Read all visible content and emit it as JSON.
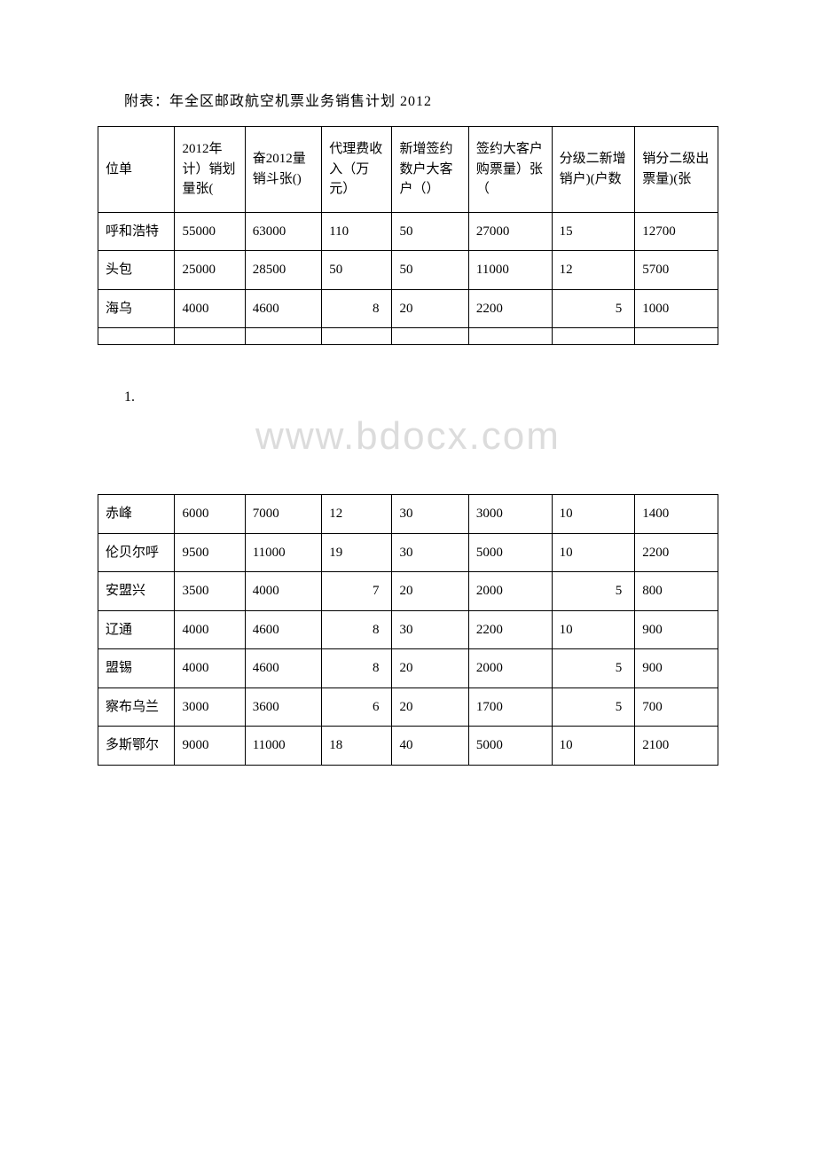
{
  "title": "附表：年全区邮政航空机票业务销售计划 2012",
  "watermark": "www.bdocx.com",
  "midLabel": "1.",
  "headers": [
    "位单",
    "2012年计）销划量张(",
    "奋2012量销斗张()",
    "代理费收入（万元）",
    "新增签约数户大客户（）",
    "签约大客户购票量）张（",
    "分级二新增销户)(户数",
    "销分二级出票量)(张"
  ],
  "table1": {
    "rows": [
      {
        "cells": [
          "呼和浩特",
          "55000",
          "63000",
          "110",
          "50",
          "27000",
          "15",
          "12700"
        ],
        "rightAlign": []
      },
      {
        "cells": [
          "头包",
          "25000",
          "28500",
          "50",
          "50",
          "11000",
          "12",
          "5700"
        ],
        "rightAlign": []
      },
      {
        "cells": [
          "海乌",
          "4000",
          "4600",
          "8",
          "20",
          "2200",
          "5",
          "1000"
        ],
        "rightAlign": [
          3,
          6
        ]
      }
    ]
  },
  "table2": {
    "rows": [
      {
        "cells": [
          "赤峰",
          "6000",
          "7000",
          "12",
          "30",
          "3000",
          "10",
          "1400"
        ],
        "rightAlign": []
      },
      {
        "cells": [
          "伦贝尔呼",
          "9500",
          "11000",
          "19",
          "30",
          "5000",
          "10",
          "2200"
        ],
        "rightAlign": []
      },
      {
        "cells": [
          "安盟兴",
          "3500",
          "4000",
          "7",
          "20",
          "2000",
          "5",
          "800"
        ],
        "rightAlign": [
          3,
          6
        ]
      },
      {
        "cells": [
          "辽通",
          "4000",
          "4600",
          "8",
          "30",
          "2200",
          "10",
          "900"
        ],
        "rightAlign": [
          3
        ]
      },
      {
        "cells": [
          "盟锡",
          "4000",
          "4600",
          "8",
          "20",
          "2000",
          "5",
          "900"
        ],
        "rightAlign": [
          3,
          6
        ]
      },
      {
        "cells": [
          "察布乌兰",
          "3000",
          "3600",
          "6",
          "20",
          "1700",
          "5",
          "700"
        ],
        "rightAlign": [
          3,
          6
        ]
      },
      {
        "cells": [
          "多斯鄂尔",
          "9000",
          "11000",
          "18",
          "40",
          "5000",
          "10",
          "2100"
        ],
        "rightAlign": []
      }
    ]
  }
}
